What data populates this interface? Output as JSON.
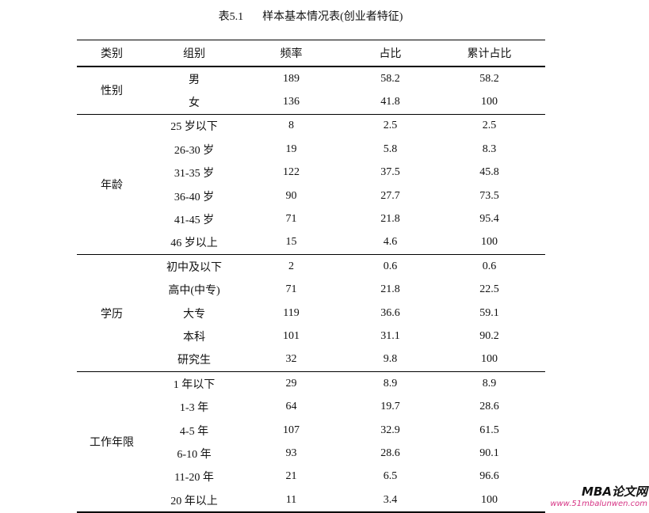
{
  "title": {
    "label": "表5.1",
    "text": "样本基本情况表(创业者特征)"
  },
  "headers": [
    "类别",
    "组别",
    "频率",
    "占比",
    "累计占比"
  ],
  "groups": [
    {
      "category": "性别",
      "rows": [
        [
          "男",
          "189",
          "58.2",
          "58.2"
        ],
        [
          "女",
          "136",
          "41.8",
          "100"
        ]
      ]
    },
    {
      "category": "年龄",
      "rows": [
        [
          "25 岁以下",
          "8",
          "2.5",
          "2.5"
        ],
        [
          "26-30 岁",
          "19",
          "5.8",
          "8.3"
        ],
        [
          "31-35 岁",
          "122",
          "37.5",
          "45.8"
        ],
        [
          "36-40 岁",
          "90",
          "27.7",
          "73.5"
        ],
        [
          "41-45 岁",
          "71",
          "21.8",
          "95.4"
        ],
        [
          "46 岁以上",
          "15",
          "4.6",
          "100"
        ]
      ]
    },
    {
      "category": "学历",
      "rows": [
        [
          "初中及以下",
          "2",
          "0.6",
          "0.6"
        ],
        [
          "高中(中专)",
          "71",
          "21.8",
          "22.5"
        ],
        [
          "大专",
          "119",
          "36.6",
          "59.1"
        ],
        [
          "本科",
          "101",
          "31.1",
          "90.2"
        ],
        [
          "研究生",
          "32",
          "9.8",
          "100"
        ]
      ]
    },
    {
      "category": "工作年限",
      "rows": [
        [
          "1 年以下",
          "29",
          "8.9",
          "8.9"
        ],
        [
          "1-3 年",
          "64",
          "19.7",
          "28.6"
        ],
        [
          "4-5 年",
          "107",
          "32.9",
          "61.5"
        ],
        [
          "6-10 年",
          "93",
          "28.6",
          "90.1"
        ],
        [
          "11-20 年",
          "21",
          "6.5",
          "96.6"
        ],
        [
          "20 年以上",
          "11",
          "3.4",
          "100"
        ]
      ]
    }
  ],
  "watermark": {
    "brand": "MBA论文网",
    "url": "www.51mbalunwen.com"
  }
}
